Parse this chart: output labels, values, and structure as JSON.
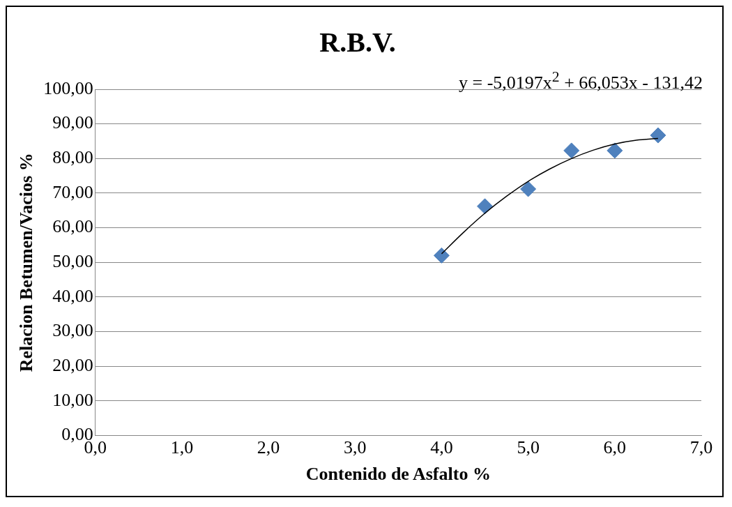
{
  "chart_data": {
    "type": "scatter",
    "title": "R.B.V.",
    "xlabel": "Contenido de Asfalto %",
    "ylabel": "Relacion Betumen/Vacios %",
    "annotations": [
      "y = -5,0197x$^{2}$ + 66,053x - 131,42"
    ],
    "series": [
      {
        "type": "scatter",
        "color": "#4f81bd",
        "marker": "diamond",
        "x": [
          4.0,
          4.5,
          5.0,
          5.5,
          6.0,
          6.5
        ],
        "values": [
          52.0,
          66.2,
          71.2,
          82.3,
          82.3,
          86.7
        ]
      },
      {
        "type": "line",
        "color": "#000000",
        "marker": "none",
        "x": [
          4.0,
          4.25,
          4.5,
          4.75,
          5.0,
          5.25,
          5.5,
          5.75,
          6.0,
          6.25,
          6.5
        ],
        "values": [
          52.5,
          58.6,
          64.2,
          69.1,
          73.4,
          77.0,
          80.0,
          82.4,
          84.2,
          85.3,
          85.8
        ]
      }
    ],
    "xlim": [
      0,
      7
    ],
    "xticks": [
      {
        "value": 0,
        "label": "0,0"
      },
      {
        "value": 1,
        "label": "1,0"
      },
      {
        "value": 2,
        "label": "2,0"
      },
      {
        "value": 3,
        "label": "3,0"
      },
      {
        "value": 4,
        "label": "4,0"
      },
      {
        "value": 5,
        "label": "5,0"
      },
      {
        "value": 6,
        "label": "6,0"
      },
      {
        "value": 7,
        "label": "7,0"
      }
    ],
    "ylim": [
      0,
      100
    ],
    "yticks": [
      {
        "value": 0,
        "label": "0,00"
      },
      {
        "value": 10,
        "label": "10,00"
      },
      {
        "value": 20,
        "label": "20,00"
      },
      {
        "value": 30,
        "label": "30,00"
      },
      {
        "value": 40,
        "label": "40,00"
      },
      {
        "value": 50,
        "label": "50,00"
      },
      {
        "value": 60,
        "label": "60,00"
      },
      {
        "value": 70,
        "label": "70,00"
      },
      {
        "value": 80,
        "label": "80,00"
      },
      {
        "value": 90,
        "label": "90,00"
      },
      {
        "value": 100,
        "label": "100,00"
      }
    ],
    "grid": "y",
    "legend": false
  }
}
